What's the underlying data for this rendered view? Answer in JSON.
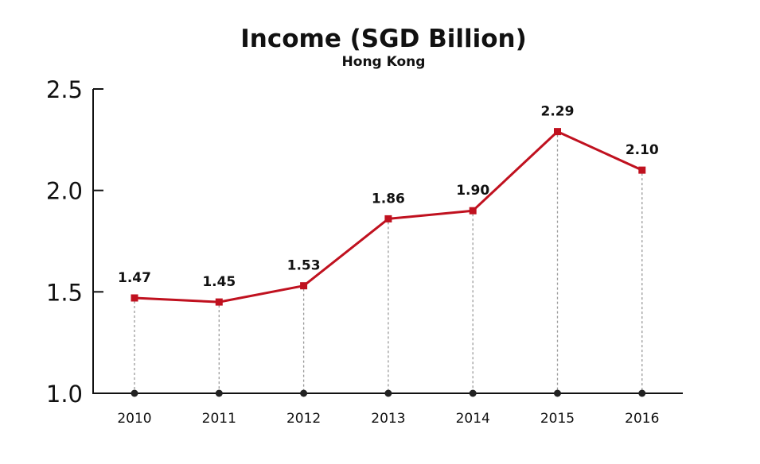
{
  "chart_data": {
    "type": "line",
    "title": "Income (SGD Billion)",
    "subtitle": "Hong Kong",
    "xlabel": "",
    "ylabel": "",
    "categories": [
      "2010",
      "2011",
      "2012",
      "2013",
      "2014",
      "2015",
      "2016"
    ],
    "series": [
      {
        "values": [
          1.47,
          1.45,
          1.53,
          1.86,
          1.9,
          2.29,
          2.1
        ],
        "labels": [
          "1.47",
          "1.45",
          "1.53",
          "1.86",
          "1.90",
          "2.29",
          "2.10"
        ]
      }
    ],
    "ylim": [
      1.0,
      2.5
    ],
    "yticks": [
      "1.0",
      "1.5",
      "2.0",
      "2.5"
    ],
    "grid": false,
    "colors": {
      "line": "#c0111f",
      "axis": "#111111",
      "dropline": "#9a9a9a",
      "base_marker": "#222222"
    }
  }
}
